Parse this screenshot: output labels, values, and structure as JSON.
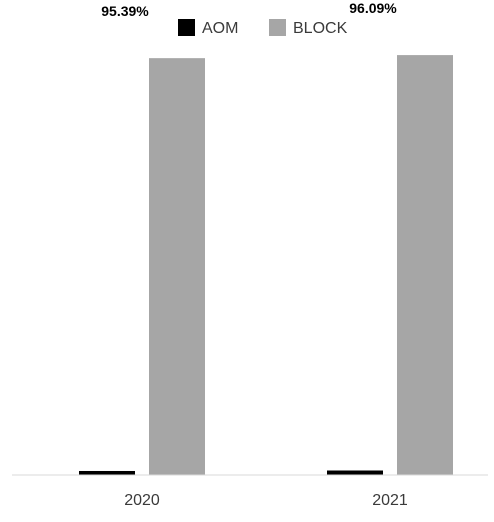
{
  "chart_data": {
    "type": "bar",
    "title": "",
    "xlabel": "",
    "ylabel": "",
    "categories": [
      "2020",
      "2021"
    ],
    "series": [
      {
        "name": "AOM",
        "color": "#000000",
        "values": [
          0.92,
          1.03
        ],
        "labels": [
          "",
          ""
        ]
      },
      {
        "name": "BLOCK",
        "color": "#a6a6a6",
        "values": [
          95.39,
          96.09
        ],
        "labels": [
          "95.39%",
          "96.09%"
        ]
      }
    ],
    "ylim": [
      0,
      100
    ],
    "grid": false,
    "legend": "top-center"
  }
}
